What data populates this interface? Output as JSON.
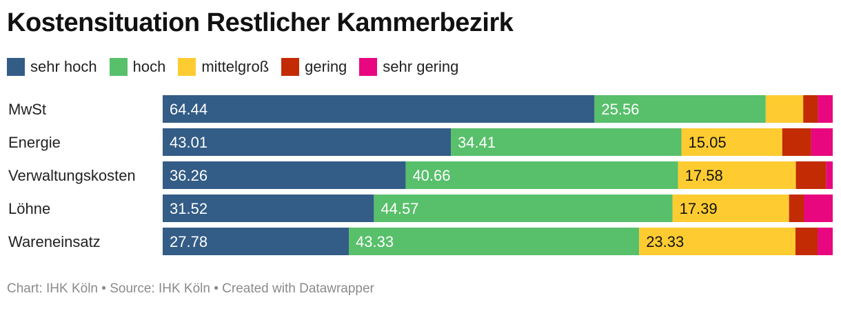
{
  "title": "Kostensituation Restlicher Kammerbezirk",
  "legend": [
    {
      "label": "sehr hoch",
      "color": "#335c86"
    },
    {
      "label": "hoch",
      "color": "#58bf6b"
    },
    {
      "label": "mittelgroß",
      "color": "#fecc31"
    },
    {
      "label": "gering",
      "color": "#c22b04"
    },
    {
      "label": "sehr gering",
      "color": "#e8077e"
    }
  ],
  "footer": "Chart: IHK Köln • Source: IHK Köln • Created with Datawrapper",
  "chart_data": {
    "type": "bar",
    "orientation": "horizontal",
    "stacked": true,
    "title": "Kostensituation Restlicher Kammerbezirk",
    "xlim": [
      0,
      100
    ],
    "categories": [
      "MwSt",
      "Energie",
      "Verwaltungskosten",
      "Löhne",
      "Wareneinsatz"
    ],
    "series": [
      {
        "name": "sehr hoch",
        "color": "#335c86",
        "label_color": "#ffffff",
        "values": [
          64.44,
          43.01,
          36.26,
          31.52,
          27.78
        ],
        "labels": [
          "64.44",
          "43.01",
          "36.26",
          "31.52",
          "27.78"
        ]
      },
      {
        "name": "hoch",
        "color": "#58bf6b",
        "label_color": "#ffffff",
        "values": [
          25.56,
          34.41,
          40.66,
          44.57,
          43.33
        ],
        "labels": [
          "25.56",
          "34.41",
          "40.66",
          "44.57",
          "43.33"
        ]
      },
      {
        "name": "mittelgroß",
        "color": "#fecc31",
        "label_color": "#111111",
        "values": [
          5.6,
          15.05,
          17.58,
          17.39,
          23.33
        ],
        "labels": [
          "",
          "15.05",
          "17.58",
          "17.39",
          "23.33"
        ]
      },
      {
        "name": "gering",
        "color": "#c22b04",
        "label_color": "#ffffff",
        "values": [
          2.2,
          4.3,
          4.5,
          2.2,
          3.3
        ],
        "labels": [
          "",
          "",
          "",
          "",
          ""
        ]
      },
      {
        "name": "sehr gering",
        "color": "#e8077e",
        "label_color": "#ffffff",
        "values": [
          2.2,
          3.23,
          1.0,
          4.32,
          2.26
        ],
        "labels": [
          "",
          "",
          "",
          "",
          ""
        ]
      }
    ]
  }
}
